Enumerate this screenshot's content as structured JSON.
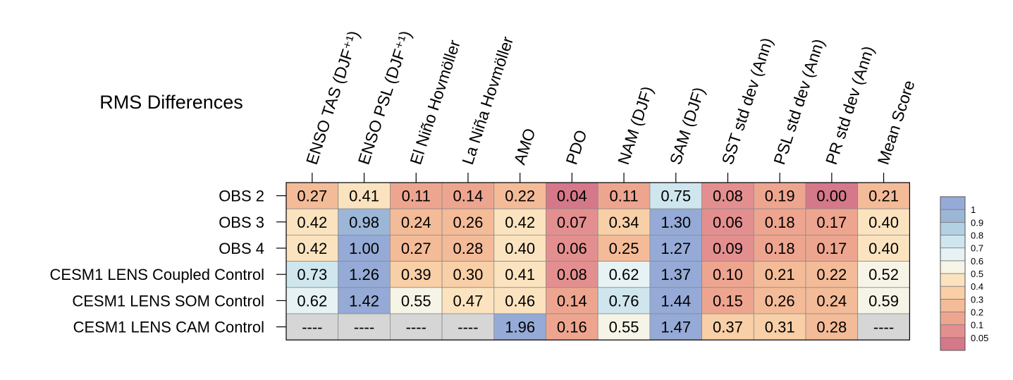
{
  "chart_data": {
    "type": "heatmap",
    "title": "RMS Differences",
    "columns": [
      "ENSO TAS (DJF⁺¹)",
      "ENSO PSL (DJF⁺¹)",
      "El Niño Hovmöller",
      "La Niña Hovmöller",
      "AMO",
      "PDO",
      "NAM (DJF)",
      "SAM (DJF)",
      "SST std dev (Ann)",
      "PSL std dev (Ann)",
      "PR std dev (Ann)",
      "Mean Score"
    ],
    "rows": [
      "OBS 2",
      "OBS 3",
      "OBS 4",
      "CESM1 LENS Coupled Control",
      "CESM1 LENS SOM Control",
      "CESM1 LENS CAM Control"
    ],
    "values": [
      [
        0.27,
        0.41,
        0.11,
        0.14,
        0.22,
        0.04,
        0.11,
        0.75,
        0.08,
        0.19,
        0.0,
        0.21
      ],
      [
        0.42,
        0.98,
        0.24,
        0.26,
        0.42,
        0.07,
        0.34,
        1.3,
        0.06,
        0.18,
        0.17,
        0.4
      ],
      [
        0.42,
        1.0,
        0.27,
        0.28,
        0.4,
        0.06,
        0.25,
        1.27,
        0.09,
        0.18,
        0.17,
        0.4
      ],
      [
        0.73,
        1.26,
        0.39,
        0.3,
        0.41,
        0.08,
        0.62,
        1.37,
        0.1,
        0.21,
        0.22,
        0.52
      ],
      [
        0.62,
        1.42,
        0.55,
        0.47,
        0.46,
        0.14,
        0.76,
        1.44,
        0.15,
        0.26,
        0.24,
        0.59
      ],
      [
        null,
        null,
        null,
        null,
        1.96,
        0.16,
        0.55,
        1.47,
        0.37,
        0.31,
        0.28,
        null
      ]
    ],
    "labels": [
      [
        "0.27",
        "0.41",
        "0.11",
        "0.14",
        "0.22",
        "0.04",
        "0.11",
        "0.75",
        "0.08",
        "0.19",
        "0.00",
        "0.21"
      ],
      [
        "0.42",
        "0.98",
        "0.24",
        "0.26",
        "0.42",
        "0.07",
        "0.34",
        "1.30",
        "0.06",
        "0.18",
        "0.17",
        "0.40"
      ],
      [
        "0.42",
        "1.00",
        "0.27",
        "0.28",
        "0.40",
        "0.06",
        "0.25",
        "1.27",
        "0.09",
        "0.18",
        "0.17",
        "0.40"
      ],
      [
        "0.73",
        "1.26",
        "0.39",
        "0.30",
        "0.41",
        "0.08",
        "0.62",
        "1.37",
        "0.10",
        "0.21",
        "0.22",
        "0.52"
      ],
      [
        "0.62",
        "1.42",
        "0.55",
        "0.47",
        "0.46",
        "0.14",
        "0.76",
        "1.44",
        "0.15",
        "0.26",
        "0.24",
        "0.59"
      ],
      [
        "----",
        "----",
        "----",
        "----",
        "1.96",
        "0.16",
        "0.55",
        "1.47",
        "0.37",
        "0.31",
        "0.28",
        "----"
      ]
    ],
    "missing_label": "----",
    "colorbar": {
      "levels": [
        0.05,
        0.1,
        0.2,
        0.3,
        0.4,
        0.5,
        0.6,
        0.7,
        0.8,
        0.9,
        1
      ],
      "tick_labels": [
        "0.05",
        "0.1",
        "0.2",
        "0.3",
        "0.4",
        "0.5",
        "0.6",
        "0.7",
        "0.8",
        "0.9",
        "1"
      ],
      "colors": [
        "#d4788a",
        "#e48f8f",
        "#eea58f",
        "#f4bb98",
        "#f8cfa6",
        "#fbe3bf",
        "#f6f4e6",
        "#e6f2f4",
        "#cfe6ee",
        "#b3d1e2",
        "#9cb6d8",
        "#95aad6"
      ],
      "missing_color": "#d6d6d6"
    }
  }
}
